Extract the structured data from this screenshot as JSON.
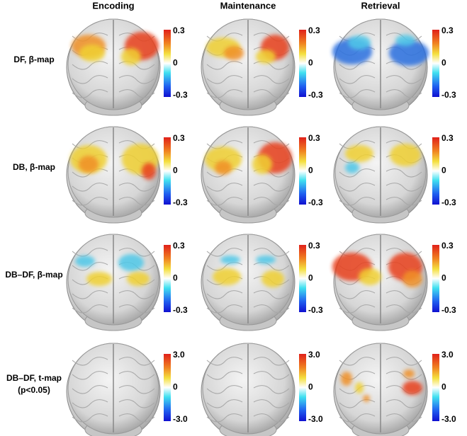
{
  "columns": [
    "Encoding",
    "Maintenance",
    "Retrieval"
  ],
  "rows": [
    {
      "label": [
        "DF, β-map"
      ],
      "scale": [
        "0.3",
        "0",
        "-0.3"
      ]
    },
    {
      "label": [
        "DB, β-map"
      ],
      "scale": [
        "0.3",
        "0",
        "-0.3"
      ]
    },
    {
      "label": [
        "DB–DF, β-map"
      ],
      "scale": [
        "0.3",
        "0",
        "-0.3"
      ]
    },
    {
      "label": [
        "DB–DF, t-map",
        "(p<0.05)"
      ],
      "scale": [
        "3.0",
        "0",
        "-3.0"
      ]
    }
  ]
}
